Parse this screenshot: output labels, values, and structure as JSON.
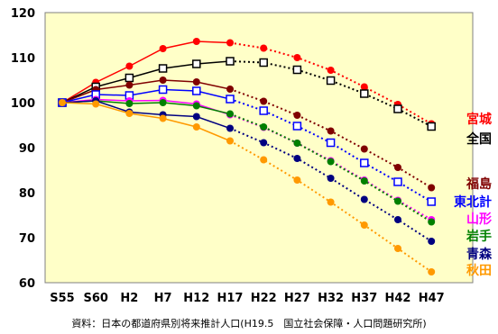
{
  "chart_data": {
    "type": "line",
    "categories": [
      "S55",
      "S60",
      "H2",
      "H7",
      "H12",
      "H17",
      "H22",
      "H27",
      "H32",
      "H37",
      "H42",
      "H47"
    ],
    "projection_start": "H17",
    "ylim": [
      60,
      120
    ],
    "yticks": [
      60,
      70,
      80,
      90,
      100,
      110,
      120
    ],
    "grid": false,
    "legend": "end-labels",
    "colors": {
      "plot_bg": "#FFFFC8",
      "axis": "#808080"
    },
    "series": [
      {
        "name": "宮城",
        "color": "#FF0000",
        "marker": "filled-circle",
        "values": [
          100,
          104.5,
          108.1,
          112.0,
          113.6,
          113.3,
          112.1,
          110.0,
          107.2,
          103.5,
          99.6,
          95.3
        ]
      },
      {
        "name": "全国",
        "color": "#000000",
        "marker": "open-square",
        "values": [
          100,
          103.5,
          105.5,
          107.6,
          108.6,
          109.2,
          108.9,
          107.3,
          104.9,
          102.0,
          98.6,
          94.7
        ]
      },
      {
        "name": "福島",
        "color": "#800000",
        "marker": "filled-circle",
        "values": [
          100,
          102.9,
          103.9,
          105.0,
          104.6,
          103.0,
          100.3,
          97.2,
          93.7,
          89.7,
          85.6,
          81.1
        ]
      },
      {
        "name": "東北計",
        "color": "#0000FF",
        "marker": "open-square",
        "values": [
          100,
          101.8,
          101.6,
          102.9,
          102.6,
          100.8,
          98.2,
          94.8,
          91.1,
          86.6,
          82.4,
          78.0
        ]
      },
      {
        "name": "山形",
        "color": "#FF00FF",
        "marker": "filled-circle",
        "values": [
          100,
          100.7,
          100.4,
          100.5,
          99.7,
          97.3,
          94.5,
          91.0,
          87.1,
          82.8,
          78.3,
          74.0
        ]
      },
      {
        "name": "岩手",
        "color": "#008000",
        "marker": "filled-circle",
        "values": [
          100,
          100.4,
          99.8,
          100.0,
          99.3,
          97.5,
          94.6,
          91.0,
          86.9,
          82.6,
          78.1,
          73.5
        ]
      },
      {
        "name": "青森",
        "color": "#000080",
        "marker": "filled-circle",
        "values": [
          100,
          100.4,
          97.9,
          97.3,
          96.9,
          94.3,
          91.1,
          87.6,
          83.2,
          78.5,
          74.0,
          69.2
        ]
      },
      {
        "name": "秋田",
        "color": "#FF9900",
        "marker": "filled-circle",
        "values": [
          100,
          99.7,
          97.6,
          96.5,
          94.6,
          91.5,
          87.3,
          82.8,
          77.9,
          72.8,
          67.6,
          62.4
        ]
      }
    ],
    "source": "資料：日本の都道府県別将来推計人口(H19.5　国立社会保障・人口問題研究所)"
  }
}
